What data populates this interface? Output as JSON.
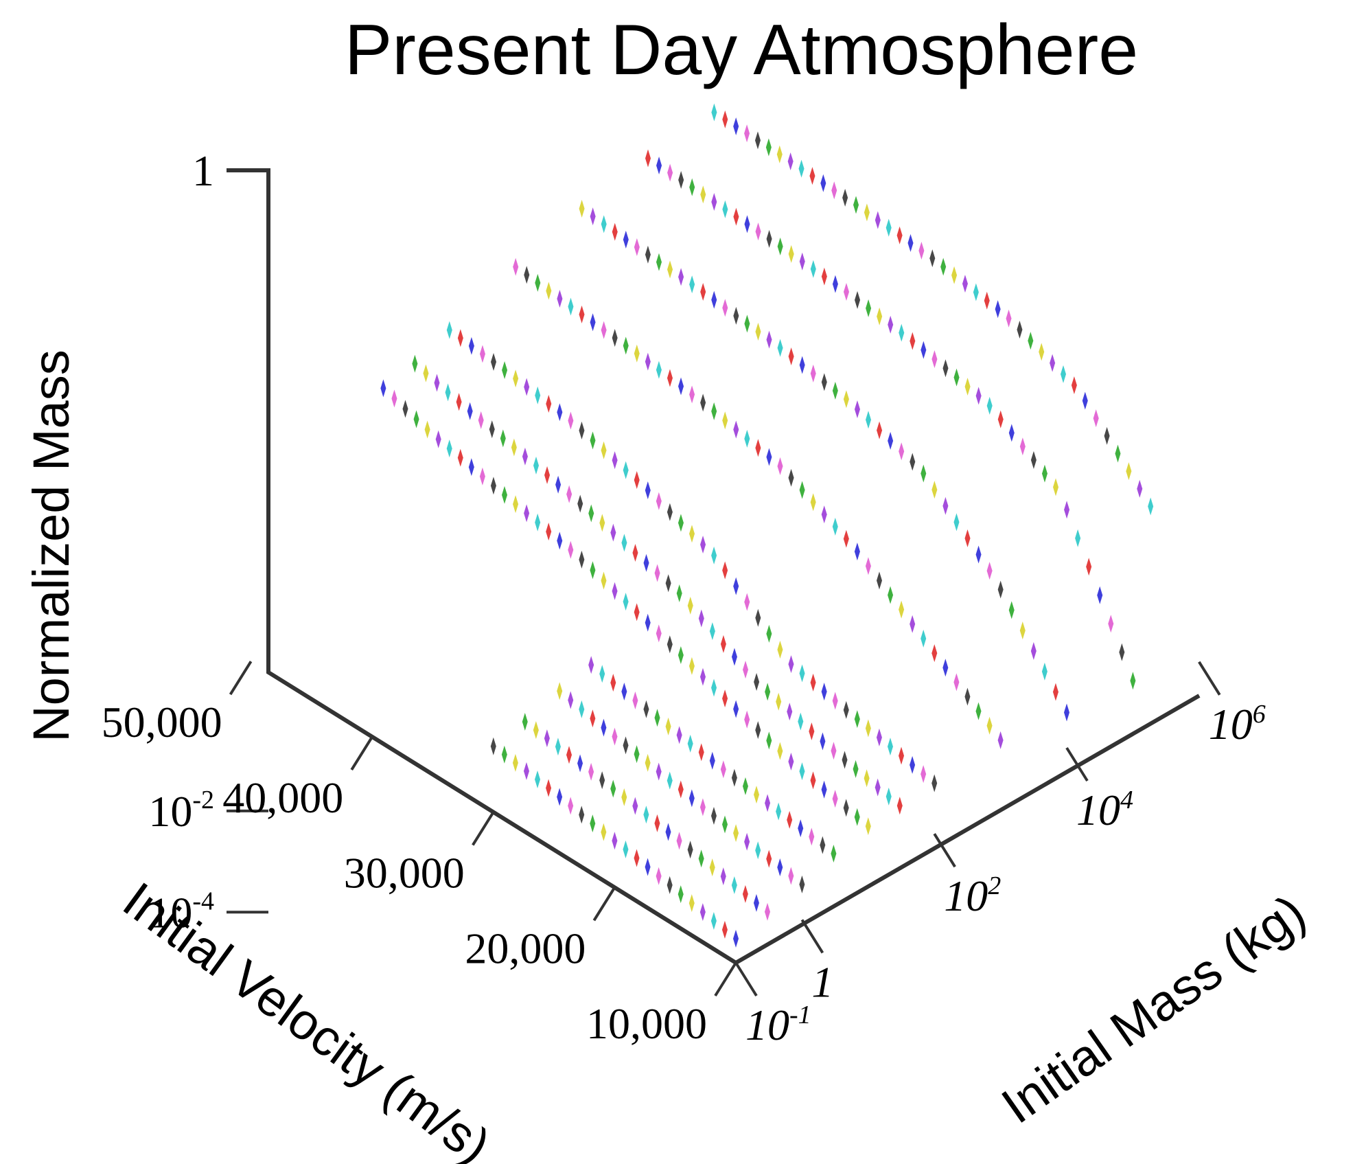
{
  "chart_data": {
    "type": "scatter",
    "title": "Present Day Atmosphere",
    "z_axis": {
      "label": "Normalized Mass",
      "scale": "log",
      "ticks": [
        {
          "value": 1,
          "base": "1",
          "exp": ""
        },
        {
          "value": 0.01,
          "base": "10",
          "exp": "-2"
        },
        {
          "value": 0.0001,
          "base": "10",
          "exp": "-4"
        }
      ]
    },
    "x_axis": {
      "label": "Initial Velocity (m/s)",
      "ticks": [
        "50,000",
        "40,000",
        "30,000",
        "20,000",
        "10,000"
      ]
    },
    "y_axis": {
      "label": "Initial Mass (kg)",
      "scale": "log",
      "ticks": [
        {
          "value": 0.1,
          "base": "10",
          "exp": "-1"
        },
        {
          "value": 1,
          "base": "1",
          "exp": ""
        },
        {
          "value": 100,
          "base": "10",
          "exp": "2"
        },
        {
          "value": 10000,
          "base": "10",
          "exp": "4"
        },
        {
          "value": 1000000,
          "base": "10",
          "exp": "6"
        }
      ]
    },
    "marker_colors": [
      "#2a2ad8",
      "#e02a2a",
      "#2ac8c8",
      "#9a3ad8",
      "#d8d02a",
      "#2aa82a",
      "#333333",
      "#e05ad0"
    ],
    "curves": [
      {
        "initial_mass_kg": 0.1,
        "points": [
          [
            10000,
            3e-05
          ],
          [
            14000,
            4.5e-05
          ],
          [
            18000,
            7e-05
          ],
          [
            22000,
            0.0001
          ],
          [
            26000,
            0.00015
          ],
          [
            30000,
            0.0002
          ]
        ]
      },
      {
        "initial_mass_kg": 0.3,
        "points": [
          [
            10000,
            4e-05
          ],
          [
            14000,
            6e-05
          ],
          [
            18000,
            9e-05
          ],
          [
            22000,
            0.00013
          ],
          [
            26000,
            0.00018
          ],
          [
            30000,
            0.00024
          ]
        ]
      },
      {
        "initial_mass_kg": 1,
        "points": [
          [
            10000,
            5e-05
          ],
          [
            14000,
            7e-05
          ],
          [
            18000,
            0.0001
          ],
          [
            22000,
            0.00015
          ],
          [
            26000,
            0.00022
          ],
          [
            30000,
            0.00035
          ]
        ]
      },
      {
        "initial_mass_kg": 3,
        "points": [
          [
            10000,
            8e-05
          ],
          [
            14000,
            0.00011
          ],
          [
            18000,
            0.00015
          ],
          [
            22000,
            0.00021
          ],
          [
            26000,
            0.0003
          ],
          [
            30000,
            0.00045
          ]
        ]
      },
      {
        "initial_mass_kg": 10,
        "points": [
          [
            10000,
            0.0001
          ],
          [
            16000,
            0.0002
          ],
          [
            22000,
            0.0006
          ],
          [
            28000,
            0.002
          ],
          [
            34000,
            0.006
          ],
          [
            40000,
            0.012
          ],
          [
            46000,
            0.025
          ],
          [
            50000,
            0.05
          ]
        ]
      },
      {
        "initial_mass_kg": 30,
        "points": [
          [
            10000,
            0.0001
          ],
          [
            16000,
            0.0002
          ],
          [
            22000,
            0.0005
          ],
          [
            28000,
            0.003
          ],
          [
            34000,
            0.008
          ],
          [
            40000,
            0.018
          ],
          [
            46000,
            0.035
          ],
          [
            50000,
            0.06
          ]
        ]
      },
      {
        "initial_mass_kg": 100,
        "points": [
          [
            10000,
            0.0001
          ],
          [
            16000,
            0.0002
          ],
          [
            22000,
            0.0004
          ],
          [
            28000,
            0.006
          ],
          [
            34000,
            0.02
          ],
          [
            40000,
            0.05
          ],
          [
            46000,
            0.08
          ],
          [
            50000,
            0.1
          ]
        ]
      },
      {
        "initial_mass_kg": 1000,
        "points": [
          [
            10000,
            0.0001
          ],
          [
            16000,
            0.001
          ],
          [
            22000,
            0.01
          ],
          [
            28000,
            0.05
          ],
          [
            34000,
            0.1
          ],
          [
            40000,
            0.15
          ],
          [
            46000,
            0.2
          ],
          [
            50000,
            0.25
          ]
        ]
      },
      {
        "initial_mass_kg": 10000,
        "points": [
          [
            10000,
            5e-05
          ],
          [
            16000,
            0.003
          ],
          [
            22000,
            0.05
          ],
          [
            28000,
            0.15
          ],
          [
            34000,
            0.25
          ],
          [
            40000,
            0.35
          ],
          [
            46000,
            0.42
          ],
          [
            50000,
            0.5
          ]
        ]
      },
      {
        "initial_mass_kg": 100000,
        "points": [
          [
            10000,
            3e-05
          ],
          [
            16000,
            0.02
          ],
          [
            22000,
            0.15
          ],
          [
            28000,
            0.3
          ],
          [
            34000,
            0.45
          ],
          [
            40000,
            0.55
          ],
          [
            46000,
            0.65
          ],
          [
            50000,
            0.7
          ]
        ]
      },
      {
        "initial_mass_kg": 1000000,
        "points": [
          [
            14000,
            0.003
          ],
          [
            20000,
            0.08
          ],
          [
            26000,
            0.3
          ],
          [
            32000,
            0.5
          ],
          [
            38000,
            0.65
          ],
          [
            44000,
            0.75
          ],
          [
            50000,
            0.8
          ]
        ]
      }
    ]
  }
}
